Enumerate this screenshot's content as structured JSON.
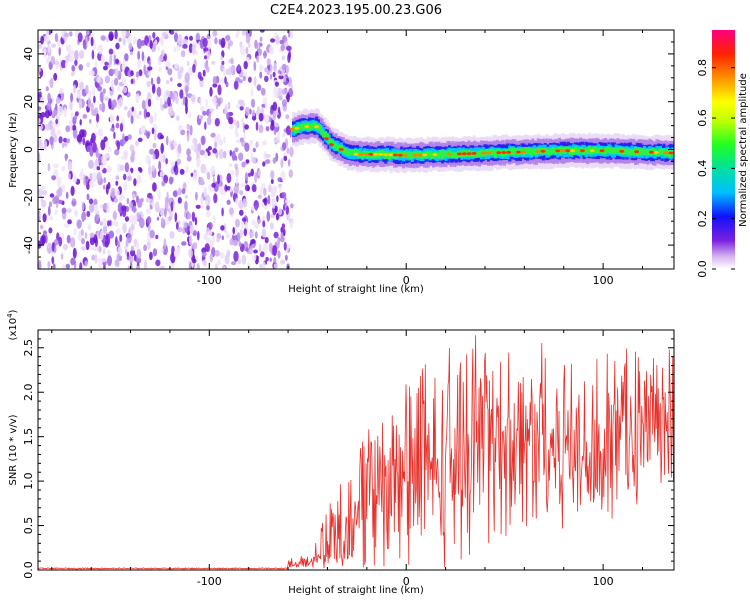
{
  "title": "C2E4.2023.195.00.23.G06",
  "chart_data": [
    {
      "type": "heatmap",
      "xlabel": "Height of straight line (km)",
      "ylabel": "Frequency (Hz)",
      "xlim": [
        -187,
        136
      ],
      "ylim": [
        -50,
        50
      ],
      "xticks": [
        -100,
        0,
        100
      ],
      "yticks": [
        -40,
        -20,
        0,
        20,
        40
      ],
      "noise_region_x": [
        -187,
        -58
      ],
      "ridge": [
        {
          "x": -58,
          "y": 8.5
        },
        {
          "x": -52,
          "y": 9.5
        },
        {
          "x": -46,
          "y": 10
        },
        {
          "x": -42,
          "y": 6
        },
        {
          "x": -38,
          "y": 2
        },
        {
          "x": -34,
          "y": 0.5
        },
        {
          "x": -30,
          "y": -1.5
        },
        {
          "x": -25,
          "y": -2
        },
        {
          "x": -15,
          "y": -2
        },
        {
          "x": 0,
          "y": -2.5
        },
        {
          "x": 20,
          "y": -2
        },
        {
          "x": 40,
          "y": -1.5
        },
        {
          "x": 60,
          "y": -1
        },
        {
          "x": 80,
          "y": -0.5
        },
        {
          "x": 100,
          "y": -0.5
        },
        {
          "x": 120,
          "y": -1
        },
        {
          "x": 136,
          "y": -1.5
        }
      ],
      "colorbar": {
        "label": "Normalized spectral amplitude",
        "range": [
          0,
          0.95
        ],
        "ticks": [
          "0.0",
          "0.2",
          "0.4",
          "0.6",
          "0.8"
        ],
        "tick_values": [
          0,
          0.2,
          0.4,
          0.6,
          0.8
        ]
      }
    },
    {
      "type": "line",
      "xlabel": "Height of straight line (km)",
      "ylabel": "SNR (10 * v/v)",
      "scale_label": "(x10",
      "scale_exponent": "4",
      "scale_close": ")",
      "xlim": [
        -187,
        136
      ],
      "ylim": [
        0,
        2.7
      ],
      "xticks": [
        -100,
        0,
        100
      ],
      "yticks": [
        "0.0",
        "0.5",
        "1.0",
        "1.5",
        "2.0",
        "2.5"
      ],
      "ytick_values": [
        0,
        0.5,
        1.0,
        1.5,
        2.0,
        2.5
      ],
      "color": "#e8302a",
      "envelope": [
        {
          "x": -187,
          "base": 0.01,
          "amp": 0.01
        },
        {
          "x": -60,
          "base": 0.01,
          "amp": 0.01
        },
        {
          "x": -45,
          "base": 0.1,
          "amp": 0.25
        },
        {
          "x": -38,
          "base": 0.25,
          "amp": 0.6
        },
        {
          "x": -30,
          "base": 0.3,
          "amp": 0.9
        },
        {
          "x": -20,
          "base": 0.5,
          "amp": 1.0
        },
        {
          "x": -10,
          "base": 0.8,
          "amp": 1.1
        },
        {
          "x": 0,
          "base": 0.9,
          "amp": 1.2
        },
        {
          "x": 20,
          "base": 1.1,
          "amp": 1.3
        },
        {
          "x": 40,
          "base": 1.3,
          "amp": 1.3
        },
        {
          "x": 60,
          "base": 1.4,
          "amp": 1.2
        },
        {
          "x": 80,
          "base": 1.3,
          "amp": 1.1
        },
        {
          "x": 100,
          "base": 1.3,
          "amp": 1.1
        },
        {
          "x": 120,
          "base": 1.4,
          "amp": 1.0
        },
        {
          "x": 136,
          "base": 1.4,
          "amp": 1.0
        }
      ]
    }
  ]
}
